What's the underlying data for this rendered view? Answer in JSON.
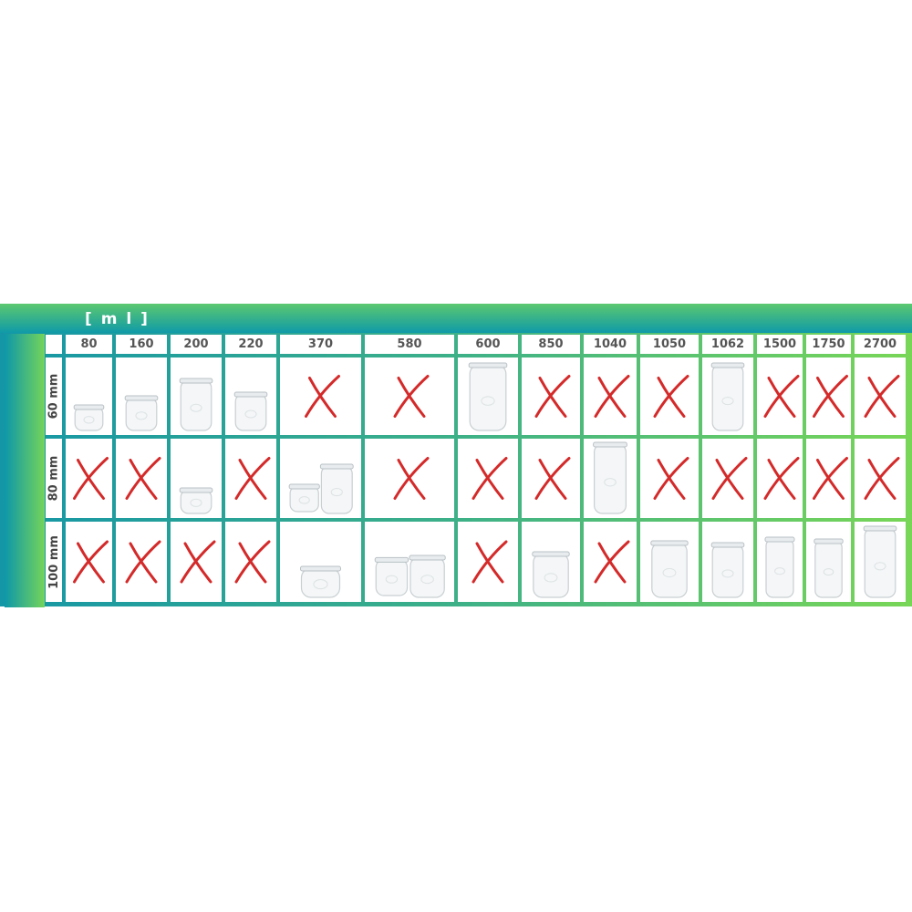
{
  "unit_label": "[ m l ]",
  "volumes": [
    "80",
    "160",
    "200",
    "220",
    "370",
    "580",
    "600",
    "850",
    "1040",
    "1050",
    "1062",
    "1500",
    "1750",
    "2700"
  ],
  "rows": [
    {
      "label": "60 mm",
      "cells": [
        "jar",
        "jar",
        "jar",
        "jar",
        "none",
        "none",
        "jar",
        "none",
        "none",
        "none",
        "jar",
        "none",
        "none",
        "none"
      ]
    },
    {
      "label": "80 mm",
      "cells": [
        "none",
        "none",
        "jar",
        "none",
        "jar2",
        "none",
        "none",
        "none",
        "jar",
        "none",
        "none",
        "none",
        "none",
        "none"
      ]
    },
    {
      "label": "100 mm",
      "cells": [
        "none",
        "none",
        "none",
        "none",
        "jar",
        "jar2",
        "none",
        "jar",
        "none",
        "jar",
        "jar",
        "jar",
        "jar",
        "jar"
      ]
    }
  ],
  "icons": {
    "unavailable": "red-x-icon",
    "available": "glass-jar-icon"
  },
  "colors": {
    "gradient_teal": "#0f9aa8",
    "gradient_green": "#74d45a",
    "cross": "#d42a2a"
  }
}
